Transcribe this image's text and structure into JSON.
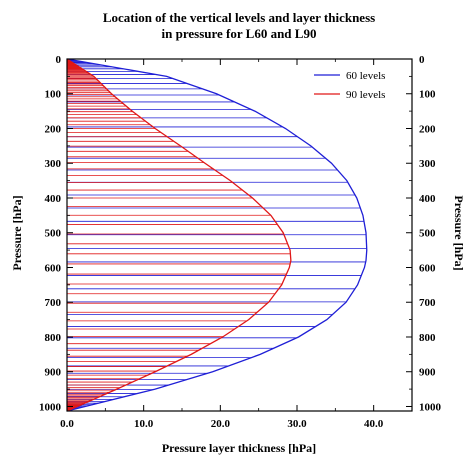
{
  "chart_data": {
    "type": "line",
    "title_lines": [
      "Location of the vertical levels and layer thickness",
      "in pressure for L60 and L90"
    ],
    "xlabel": "Pressure layer thickness [hPa]",
    "ylabel_left": "Pressure [hPa]",
    "ylabel_right": "Pressure [hPa]",
    "xlim": [
      0,
      45
    ],
    "ylim": [
      1013,
      0
    ],
    "y_inverted": true,
    "x_ticks": [
      "0.0",
      "10.0",
      "20.0",
      "30.0",
      "40.0"
    ],
    "y_ticks": [
      "0",
      "100",
      "200",
      "300",
      "400",
      "500",
      "600",
      "700",
      "800",
      "900",
      "1000"
    ],
    "legend_position": "top-right",
    "colors": {
      "L60": "#1f1fd6",
      "L90": "#e01818"
    },
    "series": [
      {
        "name": "60 levels",
        "levels": 60,
        "pressure": [
          0,
          50,
          100,
          150,
          200,
          250,
          300,
          350,
          400,
          450,
          500,
          550,
          580,
          600,
          650,
          700,
          750,
          800,
          850,
          900,
          950,
          1013
        ],
        "thickness": [
          0,
          13.0,
          19.5,
          24.5,
          28.5,
          31.8,
          34.5,
          36.5,
          37.8,
          38.6,
          39.0,
          39.1,
          39.0,
          38.8,
          37.9,
          36.4,
          33.9,
          30.2,
          25.2,
          19.0,
          11.5,
          0
        ]
      },
      {
        "name": "90 levels",
        "levels": 90,
        "pressure": [
          0,
          50,
          100,
          150,
          200,
          250,
          300,
          350,
          400,
          450,
          500,
          550,
          580,
          600,
          650,
          700,
          750,
          800,
          850,
          900,
          950,
          1013
        ],
        "thickness": [
          0,
          3.5,
          5.8,
          8.5,
          11.5,
          14.8,
          18.0,
          21.3,
          24.2,
          26.6,
          28.2,
          29.1,
          29.2,
          29.0,
          28.0,
          26.3,
          23.7,
          20.3,
          16.2,
          11.5,
          6.5,
          0
        ]
      }
    ]
  }
}
